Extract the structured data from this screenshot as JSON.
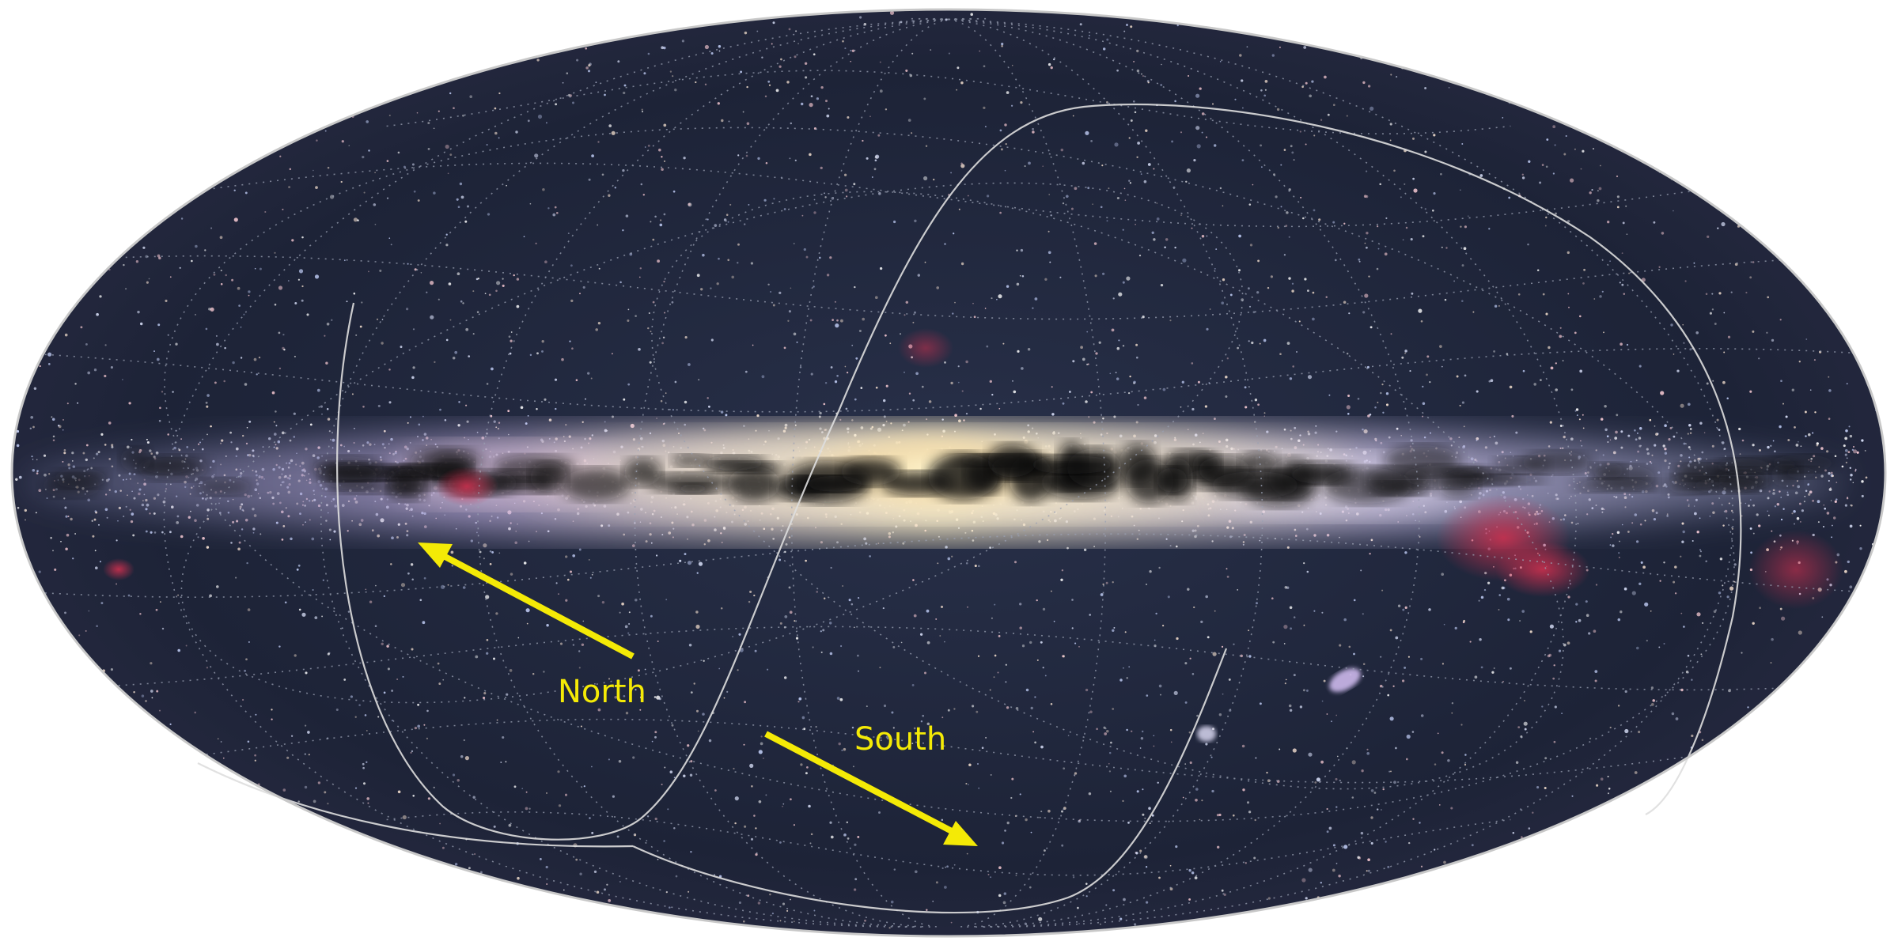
{
  "image": {
    "description_type": "all-sky-map",
    "projection": "mollweide",
    "background_color": "#ffffff",
    "sky_color": "#1c2235",
    "galactic_band_color": "#f4e7c8",
    "dust_lane_color": "#0a0b10",
    "nebula_color": "#c2304a",
    "grid_color": "#9aa1b3",
    "curve_color": "#dedede"
  },
  "annotations": {
    "color": "#f4ea06",
    "north_label": "North",
    "south_label": "South"
  }
}
